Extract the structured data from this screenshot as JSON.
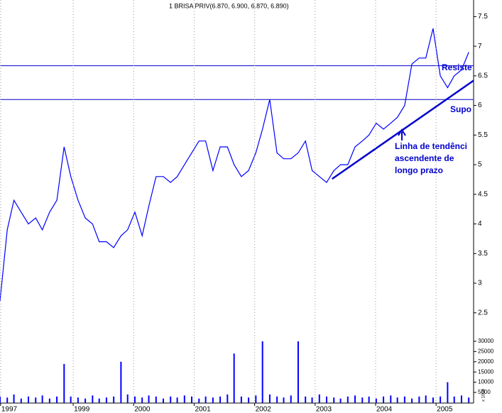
{
  "chart_data": [
    {
      "type": "line",
      "title": "1 BRISA PRIV(6.870, 6.900, 6.870, 6.890)",
      "color": "#0000ff",
      "xlim": [
        1997.79,
        2005.62
      ],
      "ylim": [
        2.15,
        7.78
      ],
      "yticks": [
        2.5,
        3.0,
        3.5,
        4.0,
        4.5,
        5.0,
        5.5,
        6.0,
        6.5,
        7.0,
        7.5
      ],
      "x": [
        1997.79,
        1997.91,
        1998.02,
        1998.14,
        1998.26,
        1998.38,
        1998.49,
        1998.61,
        1998.73,
        1998.85,
        1998.96,
        1999.08,
        1999.2,
        1999.32,
        1999.43,
        1999.55,
        1999.67,
        1999.79,
        1999.9,
        2000.02,
        2000.14,
        2000.25,
        2000.37,
        2000.49,
        2000.61,
        2000.72,
        2000.84,
        2000.96,
        2001.08,
        2001.19,
        2001.31,
        2001.43,
        2001.55,
        2001.66,
        2001.78,
        2001.9,
        2002.02,
        2002.13,
        2002.25,
        2002.37,
        2002.48,
        2002.6,
        2002.72,
        2002.84,
        2002.95,
        2003.07,
        2003.19,
        2003.31,
        2003.42,
        2003.54,
        2003.66,
        2003.78,
        2003.89,
        2004.01,
        2004.13,
        2004.25,
        2004.36,
        2004.48,
        2004.6,
        2004.72,
        2004.83,
        2004.95,
        2005.07,
        2005.19,
        2005.3,
        2005.42,
        2005.54
      ],
      "values": [
        2.7,
        3.9,
        4.4,
        4.2,
        4.0,
        4.1,
        3.9,
        4.2,
        4.4,
        5.3,
        4.8,
        4.4,
        4.1,
        4.0,
        3.7,
        3.7,
        3.6,
        3.8,
        3.9,
        4.2,
        3.8,
        4.3,
        4.8,
        4.8,
        4.7,
        4.8,
        5.0,
        5.2,
        5.4,
        5.4,
        4.9,
        5.3,
        5.3,
        5.0,
        4.8,
        4.9,
        5.2,
        5.6,
        6.1,
        5.2,
        5.1,
        5.1,
        5.2,
        5.4,
        4.9,
        4.8,
        4.7,
        4.9,
        5.0,
        5.0,
        5.3,
        5.4,
        5.5,
        5.7,
        5.6,
        5.7,
        5.8,
        6.0,
        6.7,
        6.8,
        6.8,
        7.3,
        6.5,
        6.3,
        6.5,
        6.6,
        6.9
      ],
      "hlines": [
        6.67,
        6.1
      ],
      "trendline": {
        "x": [
          2003.28,
          2005.62
        ],
        "y": [
          4.76,
          6.42
        ]
      },
      "annotations": {
        "resistance": "Resiste",
        "support": "Supo",
        "trend": [
          "Linha de tendênci",
          "ascendente de",
          "longo prazo"
        ]
      }
    },
    {
      "type": "bar",
      "color": "#0000ff",
      "xlim": [
        1997.79,
        2005.62
      ],
      "ylim": [
        0,
        33800
      ],
      "yticks": [
        5000,
        10000,
        15000,
        20000,
        25000,
        30000
      ],
      "unit_label": "x 1000",
      "xticks": [
        {
          "value": 1997.8,
          "label": "1997"
        },
        {
          "value": 1999,
          "label": "1999"
        },
        2000,
        2001,
        2002,
        2003,
        2004,
        2005
      ],
      "values": [
        3000,
        2500,
        4000,
        2000,
        3000,
        2500,
        3500,
        2000,
        3000,
        18900,
        3000,
        2500,
        2000,
        3500,
        2000,
        2500,
        3000,
        20000,
        4000,
        3000,
        2500,
        3500,
        3000,
        2000,
        3000,
        2500,
        3500,
        3000,
        2000,
        3000,
        2500,
        3000,
        4000,
        24000,
        3000,
        2500,
        3500,
        30000,
        4000,
        3000,
        2500,
        3500,
        30000,
        3000,
        2500,
        4000,
        3000,
        2500,
        2000,
        3000,
        3500,
        2500,
        3000,
        2000,
        3000,
        3500,
        2500,
        3000,
        2000,
        3000,
        3500,
        2500,
        3000,
        10000,
        3000,
        3500,
        2500
      ]
    }
  ]
}
